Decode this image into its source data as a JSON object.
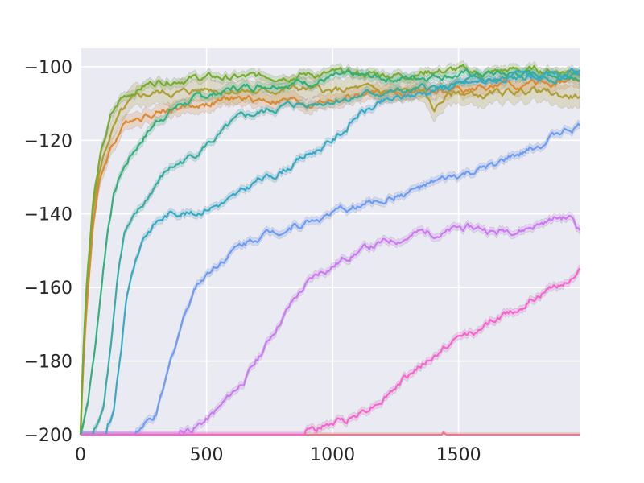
{
  "chart_data": {
    "type": "line",
    "title": "",
    "xlabel": "",
    "ylabel": "",
    "xlim": [
      0,
      1980
    ],
    "ylim": [
      -200,
      -95
    ],
    "x_ticks": [
      0,
      500,
      1000,
      1500
    ],
    "y_ticks": [
      -200,
      -180,
      -160,
      -140,
      -120,
      -100
    ],
    "x_tick_labels": [
      "0",
      "500",
      "1000",
      "1500"
    ],
    "y_tick_labels": [
      "−200",
      "−180",
      "−160",
      "−140",
      "−120",
      "−100"
    ],
    "grid": true,
    "legend": "none",
    "background": "#eaeaf2",
    "series": [
      {
        "color": "#f77189",
        "x": [
          0,
          400,
          500,
          700,
          900,
          1100,
          1300,
          1400,
          1450,
          1500,
          1600,
          1700,
          1750,
          1800,
          1900,
          1980
        ],
        "y": [
          -200,
          -200,
          -200,
          -200,
          -200,
          -200,
          -200,
          -199.5,
          -199,
          -199.5,
          -200,
          -200,
          -199.5,
          -199.3,
          -200,
          -200
        ],
        "band": 0.5
      },
      {
        "color": "#dc8932",
        "x": [
          0,
          10,
          25,
          50,
          80,
          120,
          160,
          200,
          250,
          300,
          400,
          500,
          600,
          700,
          800,
          900,
          1000,
          1100,
          1200,
          1300,
          1400,
          1500,
          1600,
          1700,
          1800,
          1900,
          1980
        ],
        "y": [
          -200,
          -182,
          -165,
          -142,
          -130,
          -122,
          -117,
          -114,
          -113,
          -112,
          -111,
          -110,
          -109,
          -109,
          -109,
          -110,
          -109,
          -108,
          -107,
          -107,
          -107,
          -106,
          -106,
          -105,
          -105,
          -104,
          -104
        ],
        "band": 2.0
      },
      {
        "color": "#ae9d31",
        "x": [
          0,
          10,
          25,
          50,
          80,
          120,
          160,
          200,
          250,
          300,
          400,
          500,
          600,
          700,
          800,
          900,
          1000,
          1100,
          1200,
          1300,
          1350,
          1400,
          1450,
          1500,
          1600,
          1700,
          1800,
          1900,
          1980
        ],
        "y": [
          -200,
          -180,
          -160,
          -138,
          -127,
          -118,
          -113,
          -110,
          -108,
          -107,
          -107,
          -106,
          -106,
          -107,
          -106,
          -106,
          -107,
          -106,
          -107,
          -107,
          -106,
          -112,
          -108,
          -107,
          -108,
          -107,
          -106,
          -108,
          -108
        ],
        "band": 3.0
      },
      {
        "color": "#77ab31",
        "x": [
          0,
          10,
          25,
          50,
          80,
          120,
          160,
          200,
          250,
          300,
          400,
          500,
          600,
          700,
          800,
          900,
          1000,
          1100,
          1200,
          1300,
          1400,
          1500,
          1600,
          1700,
          1800,
          1900,
          1980
        ],
        "y": [
          -200,
          -178,
          -158,
          -136,
          -124,
          -114,
          -109,
          -107,
          -105,
          -104,
          -103,
          -103,
          -103,
          -103,
          -102,
          -102,
          -102,
          -102,
          -102,
          -102,
          -101,
          -101,
          -102,
          -101,
          -101,
          -101,
          -101
        ],
        "band": 1.2
      },
      {
        "color": "#33b07a",
        "x": [
          0,
          30,
          60,
          90,
          110,
          130,
          160,
          200,
          250,
          300,
          350,
          400,
          500,
          600,
          700,
          800,
          900,
          1000,
          1100,
          1200,
          1300,
          1400,
          1500,
          1600,
          1700,
          1800,
          1900,
          1980
        ],
        "y": [
          -200,
          -190,
          -175,
          -155,
          -143,
          -135,
          -129,
          -124,
          -119,
          -115,
          -112,
          -110,
          -108,
          -106,
          -105,
          -104,
          -104,
          -103,
          -103,
          -103,
          -103,
          -102,
          -102,
          -102,
          -102,
          -102,
          -102,
          -102
        ],
        "band": 1.2
      },
      {
        "color": "#36ada4",
        "x": [
          0,
          60,
          90,
          120,
          150,
          175,
          200,
          250,
          300,
          350,
          400,
          450,
          500,
          550,
          600,
          650,
          700,
          800,
          900,
          1000,
          1100,
          1200,
          1300,
          1400,
          1500,
          1600,
          1700,
          1800,
          1900,
          1980
        ],
        "y": [
          -200,
          -199,
          -192,
          -175,
          -155,
          -145,
          -143,
          -138,
          -132,
          -128,
          -126,
          -124,
          -121,
          -119,
          -116,
          -114,
          -113,
          -111,
          -110,
          -109,
          -108,
          -107,
          -107,
          -106,
          -105,
          -104,
          -104,
          -103,
          -103,
          -102
        ],
        "band": 1.0
      },
      {
        "color": "#38a9c5",
        "x": [
          0,
          100,
          130,
          160,
          180,
          200,
          250,
          300,
          350,
          400,
          450,
          500,
          550,
          600,
          650,
          700,
          750,
          800,
          850,
          900,
          950,
          1000,
          1050,
          1100,
          1200,
          1300,
          1400,
          1500,
          1600,
          1700,
          1800,
          1900,
          1980
        ],
        "y": [
          -200,
          -200,
          -195,
          -178,
          -165,
          -157,
          -146,
          -142,
          -140,
          -139,
          -140,
          -138,
          -137,
          -136,
          -134,
          -131,
          -130,
          -128,
          -126,
          -124,
          -122,
          -120,
          -117,
          -113,
          -110,
          -108,
          -106,
          -105,
          -104,
          -103,
          -103,
          -103,
          -102
        ],
        "band": 1.0
      },
      {
        "color": "#6e9bf4",
        "x": [
          0,
          150,
          200,
          250,
          300,
          330,
          360,
          400,
          450,
          500,
          550,
          600,
          650,
          700,
          750,
          800,
          850,
          900,
          950,
          1000,
          1050,
          1100,
          1150,
          1200,
          1250,
          1300,
          1350,
          1400,
          1450,
          1500,
          1550,
          1600,
          1650,
          1700,
          1750,
          1800,
          1850,
          1900,
          1950,
          1980
        ],
        "y": [
          -200,
          -200,
          -200,
          -198,
          -195,
          -188,
          -180,
          -170,
          -160,
          -156,
          -153,
          -150,
          -148,
          -146,
          -145,
          -144,
          -143,
          -142,
          -141,
          -140,
          -139,
          -138,
          -137,
          -136,
          -135,
          -134,
          -133,
          -132,
          -131,
          -130,
          -129,
          -128,
          -127,
          -125,
          -124,
          -122,
          -120,
          -118,
          -117,
          -116
        ],
        "band": 1.0
      },
      {
        "color": "#cc7af4",
        "x": [
          0,
          350,
          400,
          450,
          500,
          550,
          600,
          650,
          700,
          750,
          800,
          850,
          900,
          950,
          1000,
          1050,
          1100,
          1150,
          1200,
          1250,
          1300,
          1350,
          1400,
          1450,
          1500,
          1550,
          1600,
          1650,
          1700,
          1750,
          1800,
          1850,
          1900,
          1950,
          1980
        ],
        "y": [
          -200,
          -200,
          -199,
          -198,
          -196,
          -193,
          -189,
          -185,
          -180,
          -174,
          -168,
          -163,
          -159,
          -156,
          -154,
          -152,
          -150,
          -149,
          -148,
          -147,
          -146,
          -145,
          -145,
          -145,
          -144,
          -144,
          -144,
          -145,
          -144,
          -144,
          -143,
          -142,
          -141,
          -141,
          -144
        ],
        "band": 1.0
      },
      {
        "color": "#f565cc",
        "x": [
          0,
          800,
          850,
          900,
          950,
          1000,
          1050,
          1100,
          1150,
          1200,
          1250,
          1300,
          1350,
          1400,
          1450,
          1500,
          1550,
          1600,
          1650,
          1700,
          1750,
          1800,
          1850,
          1900,
          1950,
          1980
        ],
        "y": [
          -200,
          -200,
          -200,
          -199,
          -198,
          -197,
          -196,
          -194,
          -192,
          -190,
          -187,
          -184,
          -181,
          -179,
          -176,
          -174,
          -172,
          -171,
          -169,
          -167,
          -165,
          -163,
          -161,
          -159,
          -157,
          -155
        ],
        "band": 1.0
      }
    ]
  }
}
